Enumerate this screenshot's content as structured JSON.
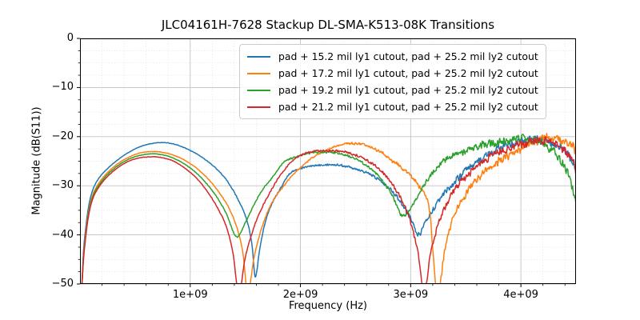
{
  "figure": {
    "title": "JLC04161H-7628 Stackup DL-SMA-K513-08K Transitions",
    "xlabel": "Frequency (Hz)",
    "ylabel": "Magnitude (dB(S11))"
  },
  "chart_data": {
    "type": "line",
    "title": "JLC04161H-7628 Stackup DL-SMA-K513-08K Transitions",
    "xlabel": "Frequency (Hz)",
    "ylabel": "Magnitude (dB(S11))",
    "xlim": [
      0,
      4500000000.0
    ],
    "ylim": [
      -50,
      0
    ],
    "xticks": [
      1000000000.0,
      2000000000.0,
      3000000000.0,
      4000000000.0
    ],
    "xticklabels": [
      "1e+09",
      "2e+09",
      "3e+09",
      "4e+09"
    ],
    "x_minor_step": 200000000.0,
    "yticks": [
      0,
      -10,
      -20,
      -30,
      -40,
      -50
    ],
    "yticklabels": [
      "0",
      "−10",
      "−20",
      "−30",
      "−40",
      "−50"
    ],
    "y_minor_step": 2.5,
    "grid": {
      "major": "solid",
      "minor": "dotted"
    },
    "legend_position": "upper right",
    "background": "#ffffff",
    "grid_major_color": "#c3c3c3",
    "grid_minor_color": "#dcdcdc",
    "spine_color": "#000000",
    "series": [
      {
        "name": "pad + 15.2 mil ly1 cutout, pad + 25.2 mil ly2 cutout",
        "color": "#1f77b4",
        "points_ghz_db": [
          [
            0.012,
            -53
          ],
          [
            0.03,
            -44
          ],
          [
            0.05,
            -39
          ],
          [
            0.08,
            -34
          ],
          [
            0.12,
            -30.6
          ],
          [
            0.18,
            -28.2
          ],
          [
            0.25,
            -26.5
          ],
          [
            0.35,
            -24.6
          ],
          [
            0.45,
            -23.1
          ],
          [
            0.55,
            -22.0
          ],
          [
            0.65,
            -21.4
          ],
          [
            0.75,
            -21.2
          ],
          [
            0.85,
            -21.5
          ],
          [
            0.95,
            -22.3
          ],
          [
            1.05,
            -23.4
          ],
          [
            1.15,
            -24.9
          ],
          [
            1.25,
            -26.8
          ],
          [
            1.35,
            -29.5
          ],
          [
            1.45,
            -33.5
          ],
          [
            1.52,
            -37.5
          ],
          [
            1.56,
            -42
          ],
          [
            1.59,
            -48.5
          ],
          [
            1.63,
            -43
          ],
          [
            1.68,
            -37.5
          ],
          [
            1.75,
            -33.2
          ],
          [
            1.82,
            -30.5
          ],
          [
            1.9,
            -27.6
          ],
          [
            2.0,
            -26.5
          ],
          [
            2.1,
            -26.0
          ],
          [
            2.2,
            -25.7
          ],
          [
            2.35,
            -25.8
          ],
          [
            2.5,
            -26.5
          ],
          [
            2.65,
            -27.9
          ],
          [
            2.8,
            -30.3
          ],
          [
            2.9,
            -33.0
          ],
          [
            3.0,
            -36.5
          ],
          [
            3.07,
            -40.0
          ],
          [
            3.12,
            -38.0
          ],
          [
            3.2,
            -35.0
          ],
          [
            3.3,
            -31.8
          ],
          [
            3.4,
            -29.2
          ],
          [
            3.5,
            -27.0
          ],
          [
            3.6,
            -25.2
          ],
          [
            3.7,
            -23.7
          ],
          [
            3.8,
            -22.4
          ],
          [
            3.9,
            -21.5
          ],
          [
            4.0,
            -20.9
          ],
          [
            4.1,
            -20.6
          ],
          [
            4.2,
            -20.7
          ],
          [
            4.3,
            -21.3
          ],
          [
            4.38,
            -22.5
          ],
          [
            4.44,
            -24.2
          ],
          [
            4.5,
            -26.5
          ]
        ]
      },
      {
        "name": "pad + 17.2 mil ly1 cutout, pad + 25.2 mil ly2 cutout",
        "color": "#ff7f0e",
        "points_ghz_db": [
          [
            0.012,
            -53
          ],
          [
            0.03,
            -45
          ],
          [
            0.05,
            -40
          ],
          [
            0.08,
            -35
          ],
          [
            0.12,
            -31.6
          ],
          [
            0.18,
            -29.2
          ],
          [
            0.25,
            -27.3
          ],
          [
            0.35,
            -25.4
          ],
          [
            0.45,
            -24.1
          ],
          [
            0.55,
            -23.3
          ],
          [
            0.65,
            -23.05
          ],
          [
            0.75,
            -23.2
          ],
          [
            0.85,
            -23.8
          ],
          [
            0.95,
            -24.8
          ],
          [
            1.05,
            -26.3
          ],
          [
            1.15,
            -28.3
          ],
          [
            1.25,
            -31.0
          ],
          [
            1.35,
            -34.5
          ],
          [
            1.43,
            -39.0
          ],
          [
            1.48,
            -44.0
          ],
          [
            1.52,
            -52.0
          ],
          [
            1.58,
            -44.5
          ],
          [
            1.65,
            -38.5
          ],
          [
            1.74,
            -33.5
          ],
          [
            1.85,
            -30.0
          ],
          [
            1.95,
            -27.3
          ],
          [
            2.1,
            -24.5
          ],
          [
            2.25,
            -22.6
          ],
          [
            2.4,
            -21.5
          ],
          [
            2.55,
            -21.6
          ],
          [
            2.7,
            -22.8
          ],
          [
            2.85,
            -25.2
          ],
          [
            3.0,
            -28.0
          ],
          [
            3.1,
            -31.0
          ],
          [
            3.17,
            -35.0
          ],
          [
            3.24,
            -52.0
          ],
          [
            3.31,
            -43.0
          ],
          [
            3.38,
            -37.0
          ],
          [
            3.45,
            -33.5
          ],
          [
            3.55,
            -30.2
          ],
          [
            3.65,
            -27.7
          ],
          [
            3.75,
            -25.8
          ],
          [
            3.85,
            -24.3
          ],
          [
            3.95,
            -23.0
          ],
          [
            4.05,
            -21.8
          ],
          [
            4.15,
            -20.8
          ],
          [
            4.25,
            -20.3
          ],
          [
            4.35,
            -20.6
          ],
          [
            4.45,
            -21.7
          ],
          [
            4.5,
            -22.8
          ]
        ]
      },
      {
        "name": "pad + 19.2 mil ly1 cutout, pad + 25.2 mil ly2 cutout",
        "color": "#2ca02c",
        "points_ghz_db": [
          [
            0.012,
            -53
          ],
          [
            0.03,
            -45.3
          ],
          [
            0.05,
            -40.4
          ],
          [
            0.08,
            -35.4
          ],
          [
            0.12,
            -32.0
          ],
          [
            0.18,
            -29.6
          ],
          [
            0.25,
            -27.7
          ],
          [
            0.35,
            -25.8
          ],
          [
            0.45,
            -24.5
          ],
          [
            0.55,
            -23.8
          ],
          [
            0.65,
            -23.5
          ],
          [
            0.75,
            -23.7
          ],
          [
            0.85,
            -24.4
          ],
          [
            0.95,
            -25.6
          ],
          [
            1.05,
            -27.3
          ],
          [
            1.15,
            -29.6
          ],
          [
            1.25,
            -32.6
          ],
          [
            1.33,
            -35.8
          ],
          [
            1.42,
            -40.4
          ],
          [
            1.5,
            -37.5
          ],
          [
            1.58,
            -33.8
          ],
          [
            1.65,
            -31.0
          ],
          [
            1.75,
            -28.2
          ],
          [
            1.85,
            -25.2
          ],
          [
            1.95,
            -24.2
          ],
          [
            2.05,
            -23.5
          ],
          [
            2.15,
            -23.2
          ],
          [
            2.3,
            -23.3
          ],
          [
            2.45,
            -24.1
          ],
          [
            2.6,
            -25.9
          ],
          [
            2.72,
            -28.3
          ],
          [
            2.82,
            -31.5
          ],
          [
            2.92,
            -36.0
          ],
          [
            3.0,
            -34.5
          ],
          [
            3.08,
            -31.5
          ],
          [
            3.15,
            -28.8
          ],
          [
            3.25,
            -26.0
          ],
          [
            3.35,
            -24.3
          ],
          [
            3.45,
            -23.2
          ],
          [
            3.6,
            -22.1
          ],
          [
            3.75,
            -21.2
          ],
          [
            3.9,
            -20.8
          ],
          [
            4.0,
            -20.5
          ],
          [
            4.1,
            -20.7
          ],
          [
            4.2,
            -21.4
          ],
          [
            4.3,
            -23.0
          ],
          [
            4.38,
            -25.5
          ],
          [
            4.44,
            -28.5
          ],
          [
            4.5,
            -34.0
          ]
        ]
      },
      {
        "name": "pad + 21.2 mil ly1 cutout, pad + 25.2 mil ly2 cutout",
        "color": "#d62728",
        "points_ghz_db": [
          [
            0.012,
            -53
          ],
          [
            0.03,
            -45.6
          ],
          [
            0.05,
            -40.8
          ],
          [
            0.08,
            -35.8
          ],
          [
            0.12,
            -32.4
          ],
          [
            0.18,
            -30.0
          ],
          [
            0.25,
            -28.1
          ],
          [
            0.35,
            -26.2
          ],
          [
            0.45,
            -24.9
          ],
          [
            0.55,
            -24.3
          ],
          [
            0.65,
            -24.1
          ],
          [
            0.75,
            -24.3
          ],
          [
            0.85,
            -25.0
          ],
          [
            0.95,
            -26.4
          ],
          [
            1.05,
            -28.3
          ],
          [
            1.15,
            -31.0
          ],
          [
            1.25,
            -34.6
          ],
          [
            1.33,
            -38.5
          ],
          [
            1.39,
            -44.0
          ],
          [
            1.44,
            -52.0
          ],
          [
            1.5,
            -44.5
          ],
          [
            1.57,
            -39.0
          ],
          [
            1.64,
            -35.0
          ],
          [
            1.72,
            -31.5
          ],
          [
            1.82,
            -27.8
          ],
          [
            1.95,
            -24.5
          ],
          [
            2.1,
            -23.1
          ],
          [
            2.25,
            -22.9
          ],
          [
            2.4,
            -23.1
          ],
          [
            2.55,
            -24.2
          ],
          [
            2.7,
            -26.3
          ],
          [
            2.82,
            -29.2
          ],
          [
            2.92,
            -33.0
          ],
          [
            3.0,
            -37.5
          ],
          [
            3.07,
            -44.0
          ],
          [
            3.12,
            -52.0
          ],
          [
            3.18,
            -44.0
          ],
          [
            3.25,
            -38.0
          ],
          [
            3.33,
            -33.5
          ],
          [
            3.42,
            -30.2
          ],
          [
            3.52,
            -27.7
          ],
          [
            3.62,
            -25.7
          ],
          [
            3.72,
            -24.1
          ],
          [
            3.85,
            -22.7
          ],
          [
            4.0,
            -21.5
          ],
          [
            4.1,
            -21.0
          ],
          [
            4.2,
            -20.9
          ],
          [
            4.3,
            -21.4
          ],
          [
            4.4,
            -23.0
          ],
          [
            4.46,
            -24.8
          ],
          [
            4.5,
            -26.5
          ]
        ]
      }
    ]
  }
}
